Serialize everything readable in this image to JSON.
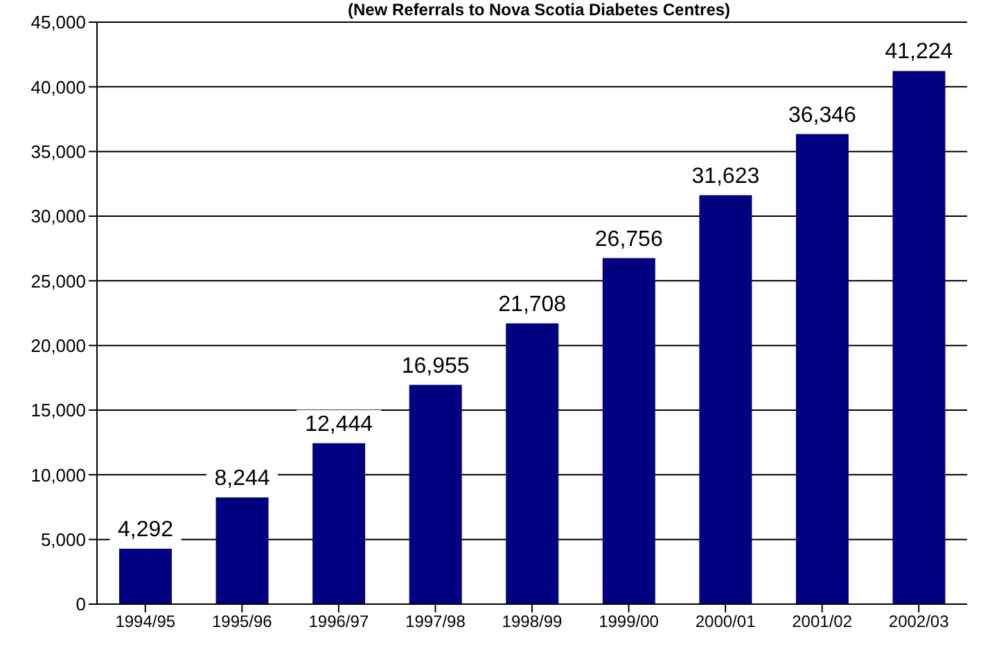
{
  "chart_data": {
    "type": "bar",
    "title": "(New Referrals to Nova Scotia Diabetes Centres)",
    "categories": [
      "1994/95",
      "1995/96",
      "1996/97",
      "1997/98",
      "1998/99",
      "1999/00",
      "2000/01",
      "2001/02",
      "2002/03"
    ],
    "values": [
      4292,
      8244,
      12444,
      16955,
      21708,
      26756,
      31623,
      36346,
      41224
    ],
    "value_labels": [
      "4,292",
      "8,244",
      "12,444",
      "16,955",
      "21,708",
      "26,756",
      "31,623",
      "36,346",
      "41,224"
    ],
    "color": "#000080",
    "ylim": [
      0,
      45000
    ],
    "yticks": [
      0,
      {
        "value": 5000,
        "label": "5,000"
      },
      {
        "value": 10000,
        "label": "10,000"
      },
      {
        "value": 15000,
        "label": "15,000"
      },
      {
        "value": 20000,
        "label": "20,000"
      },
      {
        "value": 25000,
        "label": "25,000"
      },
      {
        "value": 30000,
        "label": "30,000"
      },
      {
        "value": 35000,
        "label": "35,000"
      },
      {
        "value": 40000,
        "label": "40,000"
      },
      {
        "value": 45000,
        "label": "45,000"
      }
    ],
    "grid": "y"
  }
}
